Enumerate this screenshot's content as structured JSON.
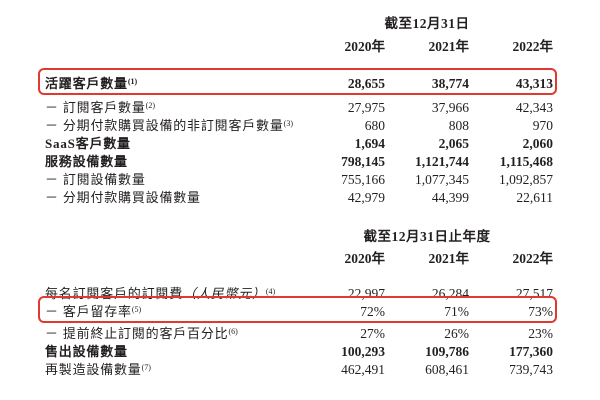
{
  "page": {
    "background": "#ffffff",
    "text_color": "#231f20",
    "highlight_color": "#e03a30"
  },
  "table1": {
    "period_header": "截至12月31日",
    "years": [
      "2020年",
      "2021年",
      "2022年"
    ],
    "rows": [
      {
        "label": "活躍客戶數量",
        "sup": "(1)",
        "values": [
          "28,655",
          "38,774",
          "43,313"
        ]
      },
      {
        "label": "－ 訂閱客戶數量",
        "sup": "(2)",
        "values": [
          "27,975",
          "37,966",
          "42,343"
        ]
      },
      {
        "label": "－ 分期付款購買設備的非訂閱客戶數量",
        "sup": "(3)",
        "values": [
          "680",
          "808",
          "970"
        ]
      },
      {
        "label": "SaaS客戶數量",
        "values": [
          "1,694",
          "2,065",
          "2,060"
        ]
      },
      {
        "label": "服務設備數量",
        "values": [
          "798,145",
          "1,121,744",
          "1,115,468"
        ]
      },
      {
        "label": "－ 訂閱設備數量",
        "values": [
          "755,166",
          "1,077,345",
          "1,092,857"
        ]
      },
      {
        "label": "－ 分期付款購買設備數量",
        "values": [
          "42,979",
          "44,399",
          "22,611"
        ]
      }
    ]
  },
  "table2": {
    "period_header": "截至12月31日止年度",
    "years": [
      "2020年",
      "2021年",
      "2022年"
    ],
    "rows": [
      {
        "label": "每名訂閱客戶的訂閱費",
        "label_italic": "（人民幣元）",
        "sup": "(4)",
        "values": [
          "22,997",
          "26,284",
          "27,517"
        ]
      },
      {
        "label": "－ 客戶留存率",
        "sup": "(5)",
        "values": [
          "72%",
          "71%",
          "73%"
        ]
      },
      {
        "label": "－ 提前終止訂閱的客戶百分比",
        "sup": "(6)",
        "values": [
          "27%",
          "26%",
          "23%"
        ]
      },
      {
        "label": "售出設備數量",
        "values": [
          "100,293",
          "109,786",
          "177,360"
        ]
      },
      {
        "label": "再製造設備數量",
        "sup": "(7)",
        "values": [
          "462,491",
          "608,461",
          "739,743"
        ]
      }
    ]
  }
}
